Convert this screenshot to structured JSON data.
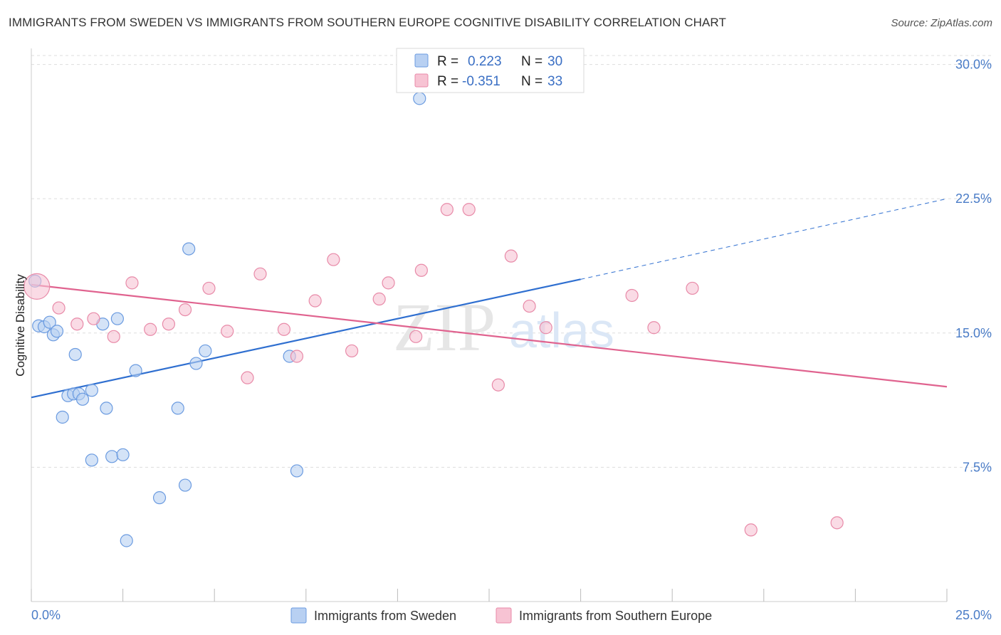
{
  "title": "IMMIGRANTS FROM SWEDEN VS IMMIGRANTS FROM SOUTHERN EUROPE COGNITIVE DISABILITY CORRELATION CHART",
  "source": "Source: ZipAtlas.com",
  "watermark": {
    "zip": "ZIP",
    "atlas": "atlas"
  },
  "colors": {
    "sweden_fill": "#b8d0f2",
    "sweden_stroke": "#6b9be0",
    "sweden_line": "#2f6fd0",
    "southern_fill": "#f7c3d3",
    "southern_stroke": "#e88aa8",
    "southern_line": "#e0638f",
    "grid": "#dddddd",
    "tick_text": "#4a7cc7"
  },
  "legend": {
    "r_label": "R =",
    "n_label": "N =",
    "rows": [
      {
        "r": "0.223",
        "n": "30"
      },
      {
        "r": "-0.351",
        "n": "33"
      }
    ]
  },
  "chart_data": {
    "type": "scatter",
    "title": "IMMIGRANTS FROM SWEDEN VS IMMIGRANTS FROM SOUTHERN EUROPE COGNITIVE DISABILITY CORRELATION CHART",
    "xlabel": "",
    "ylabel": "Cognitive Disability",
    "xlim": [
      0,
      25
    ],
    "ylim": [
      0,
      30.5
    ],
    "x_tick_labels": [
      "0.0%",
      "25.0%"
    ],
    "y_ticks": [
      7.5,
      15.0,
      22.5,
      30.0
    ],
    "y_tick_labels": [
      "7.5%",
      "15.0%",
      "22.5%",
      "30.0%"
    ],
    "grid": true,
    "legend_position": "top-center",
    "series": [
      {
        "name": "Immigrants from Sweden",
        "r": 0.223,
        "n": 30,
        "trend": {
          "x0": 0.0,
          "y0": 11.4,
          "x1": 15.0,
          "y1": 18.0,
          "dashed_to_x": 25.0,
          "dashed_to_y": 22.5
        },
        "points": [
          {
            "x": 0.1,
            "y": 17.9,
            "big": false
          },
          {
            "x": 0.2,
            "y": 15.4,
            "big": false
          },
          {
            "x": 0.35,
            "y": 15.35,
            "big": false
          },
          {
            "x": 0.5,
            "y": 15.6,
            "big": false
          },
          {
            "x": 0.6,
            "y": 14.9,
            "big": false
          },
          {
            "x": 0.7,
            "y": 15.1,
            "big": false
          },
          {
            "x": 0.85,
            "y": 10.3,
            "big": false
          },
          {
            "x": 1.0,
            "y": 11.5,
            "big": false
          },
          {
            "x": 1.15,
            "y": 11.6,
            "big": false
          },
          {
            "x": 1.2,
            "y": 13.8,
            "big": false
          },
          {
            "x": 1.3,
            "y": 11.6,
            "big": false
          },
          {
            "x": 1.4,
            "y": 11.3,
            "big": false
          },
          {
            "x": 1.65,
            "y": 11.8,
            "big": false
          },
          {
            "x": 1.65,
            "y": 7.9,
            "big": false
          },
          {
            "x": 1.95,
            "y": 15.5,
            "big": false
          },
          {
            "x": 2.05,
            "y": 10.8,
            "big": false
          },
          {
            "x": 2.2,
            "y": 8.1,
            "big": false
          },
          {
            "x": 2.35,
            "y": 15.8,
            "big": false
          },
          {
            "x": 2.5,
            "y": 8.2,
            "big": false
          },
          {
            "x": 2.6,
            "y": 3.4,
            "big": false
          },
          {
            "x": 2.85,
            "y": 12.9,
            "big": false
          },
          {
            "x": 3.5,
            "y": 5.8,
            "big": false
          },
          {
            "x": 4.0,
            "y": 10.8,
            "big": false
          },
          {
            "x": 4.2,
            "y": 6.5,
            "big": false
          },
          {
            "x": 4.3,
            "y": 19.7,
            "big": false
          },
          {
            "x": 4.5,
            "y": 13.3,
            "big": false
          },
          {
            "x": 4.75,
            "y": 14.0,
            "big": false
          },
          {
            "x": 7.05,
            "y": 13.7,
            "big": false
          },
          {
            "x": 7.25,
            "y": 7.3,
            "big": false
          },
          {
            "x": 10.6,
            "y": 28.1,
            "big": false
          }
        ]
      },
      {
        "name": "Immigrants from Southern Europe",
        "r": -0.351,
        "n": 33,
        "trend": {
          "x0": 0.0,
          "y0": 17.7,
          "x1": 25.0,
          "y1": 12.0
        },
        "points": [
          {
            "x": 0.15,
            "y": 17.6,
            "big": true
          },
          {
            "x": 0.75,
            "y": 16.4,
            "big": false
          },
          {
            "x": 1.25,
            "y": 15.5,
            "big": false
          },
          {
            "x": 1.7,
            "y": 15.8,
            "big": false
          },
          {
            "x": 2.25,
            "y": 14.8,
            "big": false
          },
          {
            "x": 2.75,
            "y": 17.8,
            "big": false
          },
          {
            "x": 3.25,
            "y": 15.2,
            "big": false
          },
          {
            "x": 3.75,
            "y": 15.5,
            "big": false
          },
          {
            "x": 4.2,
            "y": 16.3,
            "big": false
          },
          {
            "x": 4.85,
            "y": 17.5,
            "big": false
          },
          {
            "x": 5.35,
            "y": 15.1,
            "big": false
          },
          {
            "x": 5.9,
            "y": 12.5,
            "big": false
          },
          {
            "x": 6.25,
            "y": 18.3,
            "big": false
          },
          {
            "x": 6.9,
            "y": 15.2,
            "big": false
          },
          {
            "x": 7.25,
            "y": 13.7,
            "big": false
          },
          {
            "x": 7.75,
            "y": 16.8,
            "big": false
          },
          {
            "x": 8.25,
            "y": 19.1,
            "big": false
          },
          {
            "x": 8.75,
            "y": 14.0,
            "big": false
          },
          {
            "x": 9.5,
            "y": 16.9,
            "big": false
          },
          {
            "x": 9.75,
            "y": 17.8,
            "big": false
          },
          {
            "x": 10.5,
            "y": 14.8,
            "big": false
          },
          {
            "x": 10.65,
            "y": 18.5,
            "big": false
          },
          {
            "x": 11.35,
            "y": 21.9,
            "big": false
          },
          {
            "x": 11.95,
            "y": 21.9,
            "big": false
          },
          {
            "x": 12.75,
            "y": 12.1,
            "big": false
          },
          {
            "x": 13.1,
            "y": 19.3,
            "big": false
          },
          {
            "x": 13.6,
            "y": 16.5,
            "big": false
          },
          {
            "x": 14.05,
            "y": 15.3,
            "big": false
          },
          {
            "x": 16.4,
            "y": 17.1,
            "big": false
          },
          {
            "x": 17.0,
            "y": 15.3,
            "big": false
          },
          {
            "x": 18.05,
            "y": 17.5,
            "big": false
          },
          {
            "x": 19.65,
            "y": 4.0,
            "big": false
          },
          {
            "x": 22.0,
            "y": 4.4,
            "big": false
          }
        ]
      }
    ]
  }
}
